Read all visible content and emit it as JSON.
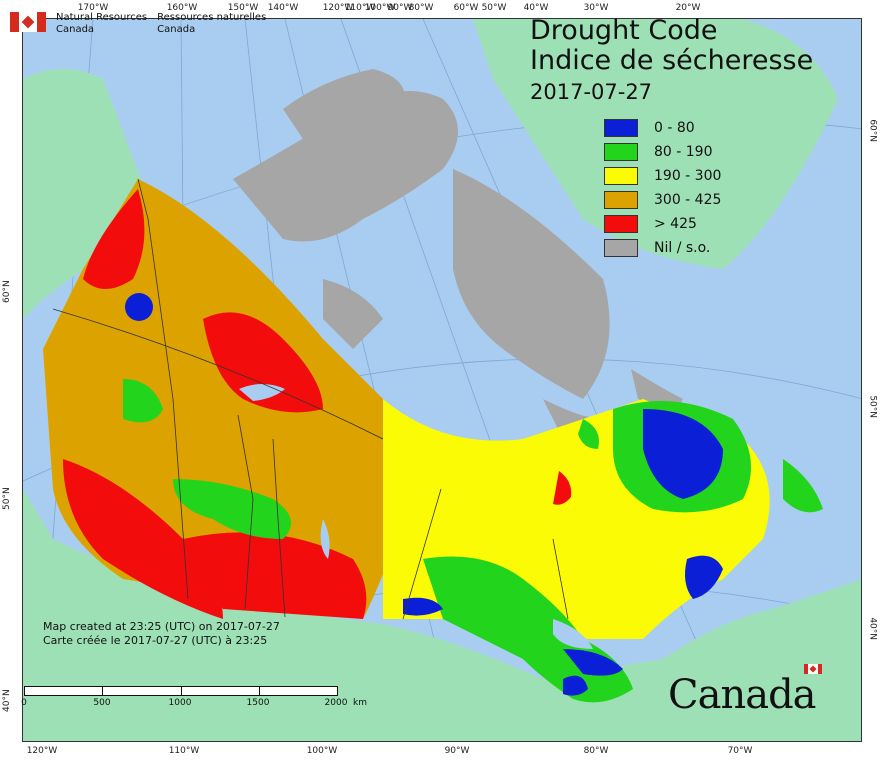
{
  "agency": {
    "line1_en": "Natural Resources",
    "line2_en": "Canada",
    "line1_fr": "Ressources naturelles",
    "line2_fr": "Canada"
  },
  "title": {
    "en": "Drought Code",
    "fr": "Indice de sécheresse",
    "date": "2017-07-27"
  },
  "legend": [
    {
      "label": "0 - 80",
      "color": "#0a1fd6"
    },
    {
      "label": "80 - 190",
      "color": "#22d41c"
    },
    {
      "label": "190 - 300",
      "color": "#fbfb05"
    },
    {
      "label": "300 - 425",
      "color": "#dca200"
    },
    {
      "label": "> 425",
      "color": "#f20c0c"
    },
    {
      "label": "Nil / s.o.",
      "color": "#a6a6a6"
    }
  ],
  "credit": {
    "en": "Map created at 23:25 (UTC) on 2017-07-27",
    "fr": "Carte créée le 2017-07-27 (UTC) à 23:25"
  },
  "scale": {
    "labels": [
      "0",
      "500",
      "1000",
      "1500",
      "2000"
    ],
    "unit": "km"
  },
  "wordmark": "Canada",
  "graticule": {
    "top": [
      "170°W",
      "160°W",
      "150°W",
      "140°W",
      "120°W",
      "110°W",
      "100°W",
      "90°W",
      "80°W",
      "60°W",
      "50°W",
      "40°W",
      "30°W",
      "20°W"
    ],
    "bottom": [
      "120°W",
      "110°W",
      "100°W",
      "90°W",
      "80°W",
      "70°W"
    ],
    "left": [
      "60°N",
      "50°N",
      "40°N"
    ],
    "right": [
      "60°N",
      "50°N",
      "40°N"
    ]
  },
  "colors": {
    "water": "#a9cdf0",
    "land_other": "#9de0b6",
    "nodata": "#a6a6a6"
  }
}
